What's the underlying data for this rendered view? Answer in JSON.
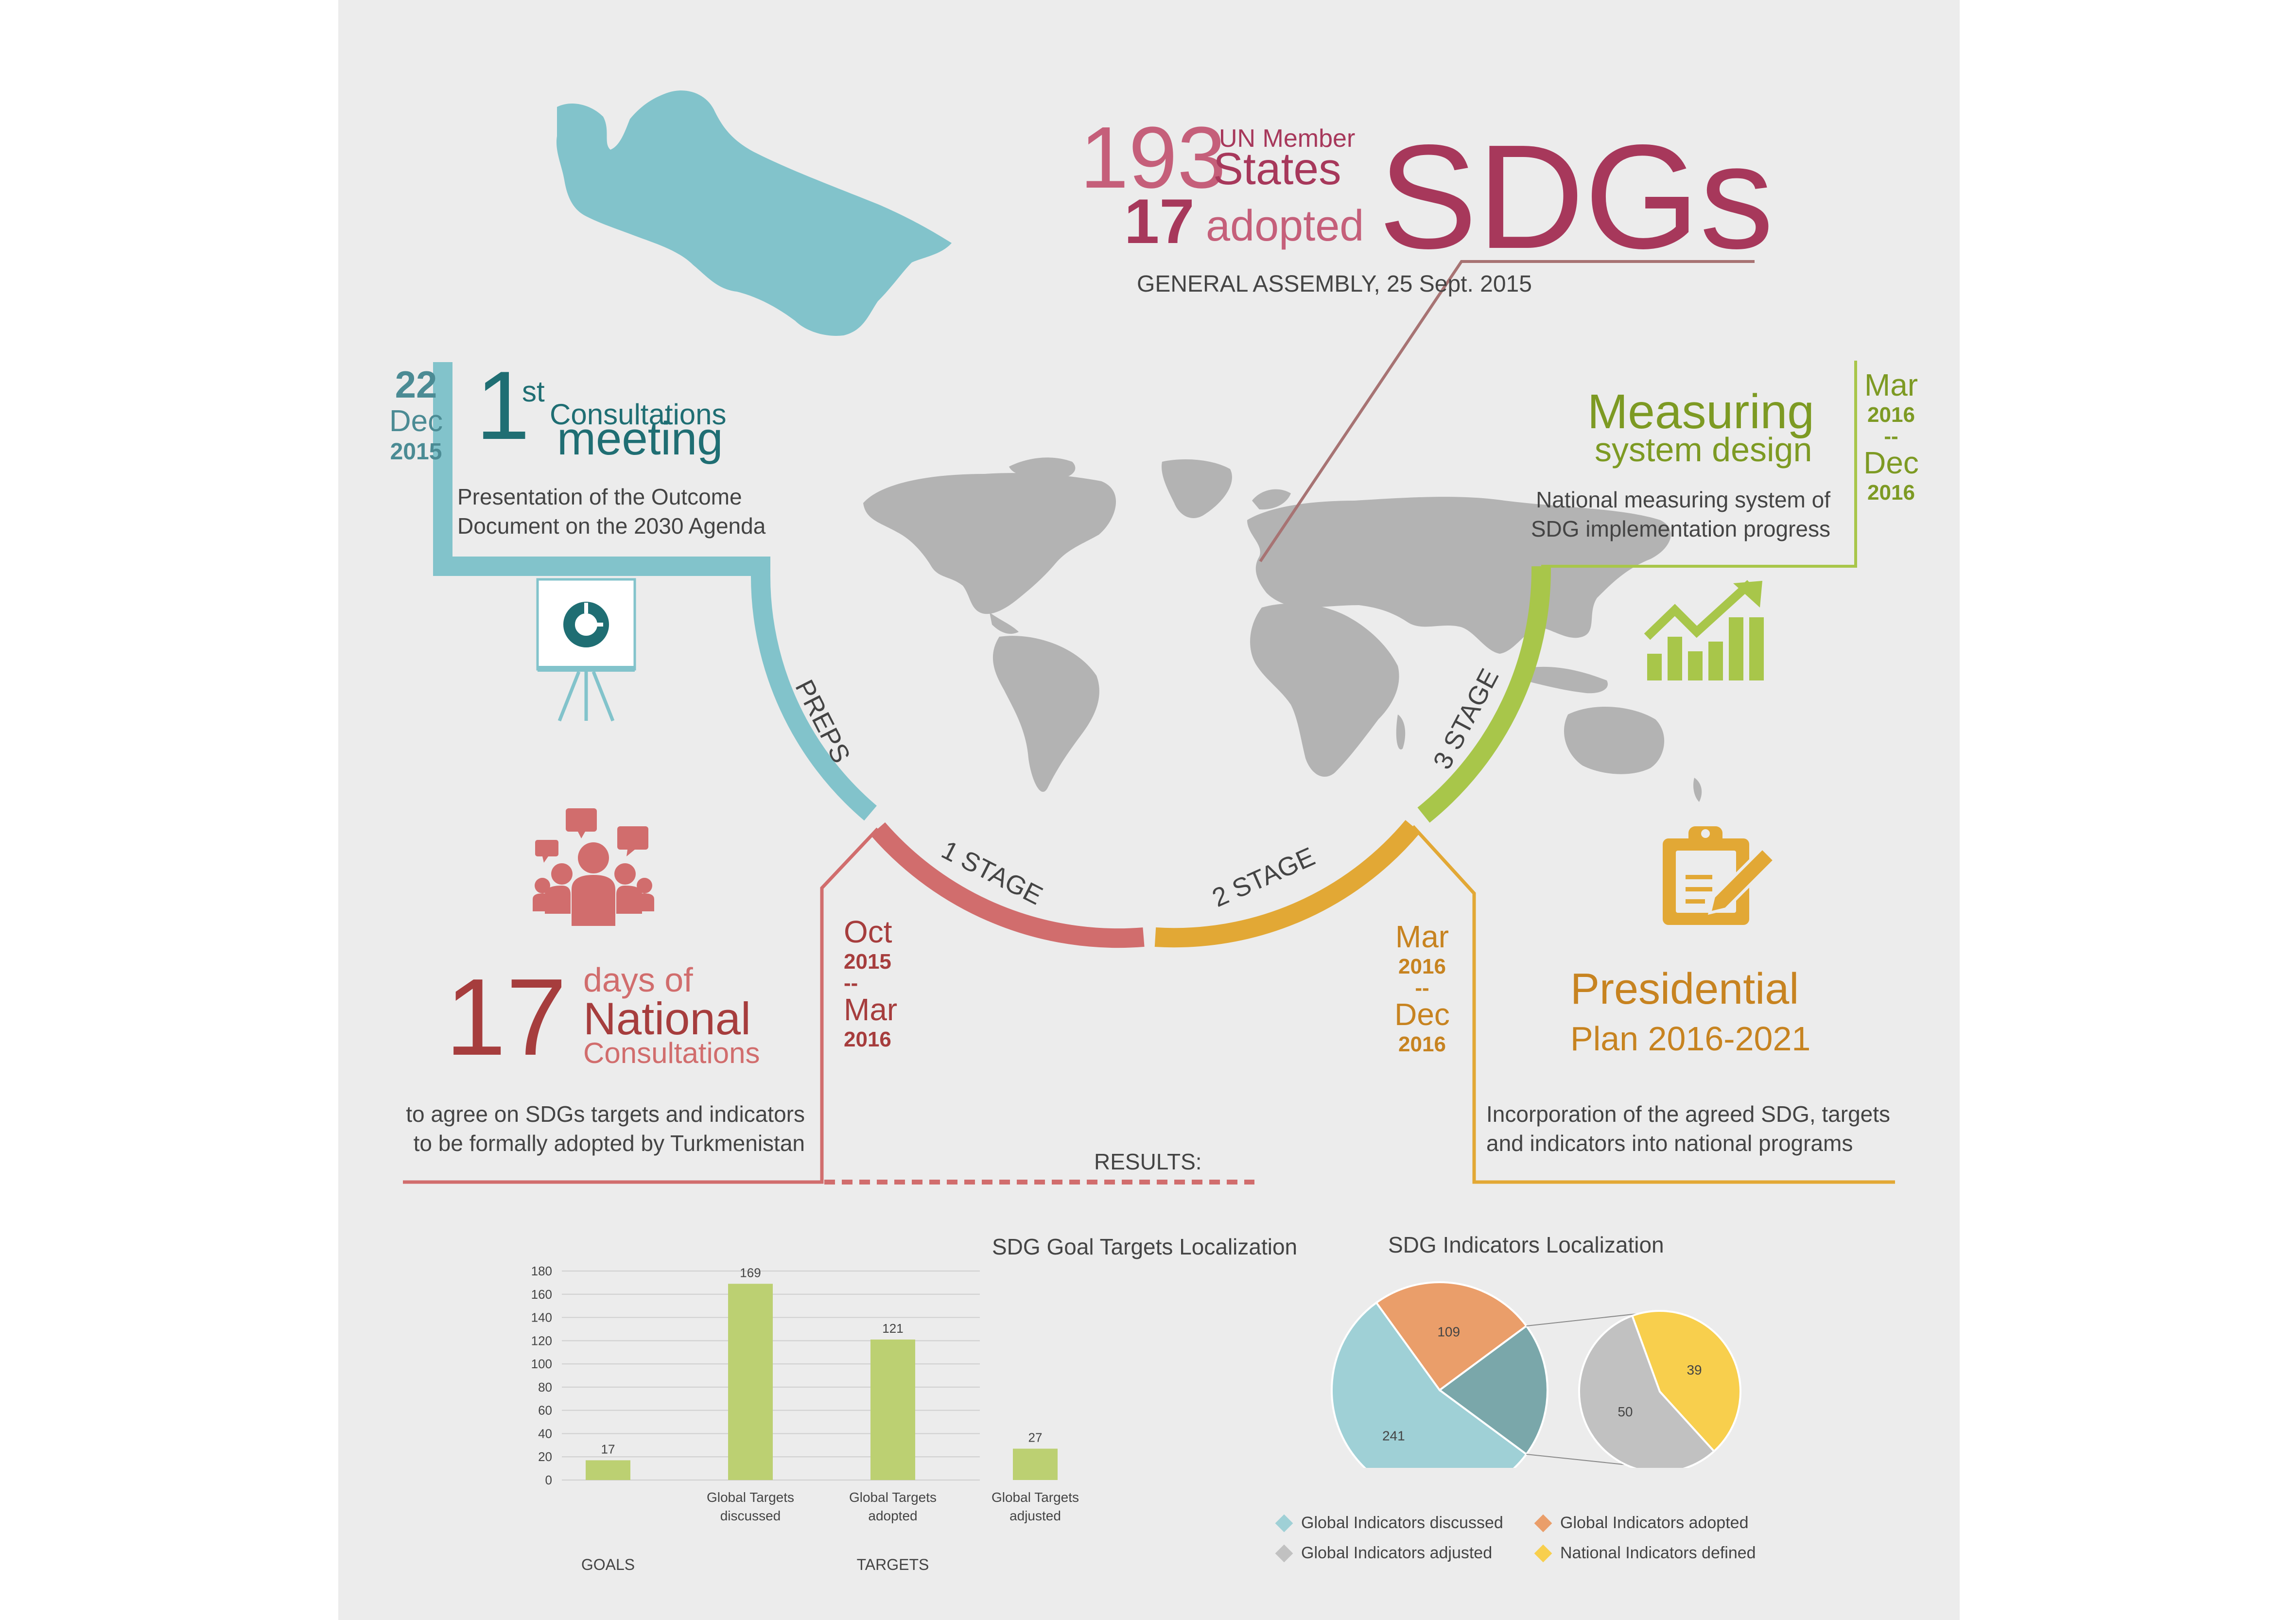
{
  "colors": {
    "background": "#ececec",
    "teal": "#82c3cb",
    "teal_dark": "#1f6e73",
    "red": "#d16d6d",
    "red_dark": "#a63d3d",
    "orange": "#e2a835",
    "orange_text": "#c78320",
    "green": "#a8c64a",
    "green_text": "#7d9a23",
    "maroon": "#a7385b",
    "pink": "#c55f7a",
    "map_gray": "#b3b3b3"
  },
  "header": {
    "num193": "193",
    "un_member": "UN Member",
    "states": "States",
    "num17": "17",
    "adopted": "adopted",
    "sdgs": "SDGs",
    "general_assembly": "GENERAL  ASSEMBLY, 25 Sept. 2015"
  },
  "first_meeting": {
    "date_day": "22",
    "date_month": "Dec",
    "date_year": "2015",
    "num": "1",
    "sup": "st",
    "consultations": "Consultations",
    "meeting": "meeting",
    "desc_line1": "Presentation of the Outcome",
    "desc_line2": "Document on the 2030 Agenda"
  },
  "measuring": {
    "title1": "Measuring",
    "title2": "system design",
    "desc_line1": "National measuring system of",
    "desc_line2": "SDG implementation progress",
    "date_from_month": "Mar",
    "date_from_year": "2016",
    "date_sep": "--",
    "date_to_month": "Dec",
    "date_to_year": "2016"
  },
  "arc_labels": {
    "preps": "PREPS",
    "stage1": "1 STAGE",
    "stage2": "2 STAGE",
    "stage3": "3 STAGE"
  },
  "national": {
    "num": "17",
    "line1": "days of",
    "line2": "National",
    "line3": "Consultations",
    "desc_line1": "to agree on SDGs targets and indicators",
    "desc_line2": "to be formally adopted by Turkmenistan"
  },
  "stage1_dates": {
    "from_month": "Oct",
    "from_year": "2015",
    "sep": "--",
    "to_month": "Mar",
    "to_year": "2016"
  },
  "stage2_dates": {
    "from_month": "Mar",
    "from_year": "2016",
    "sep": "--",
    "to_month": "Dec",
    "to_year": "2016"
  },
  "presidential": {
    "title1": "Presidential",
    "title2": "Plan 2016-2021",
    "desc_line1": "Incorporation of the agreed SDG, targets",
    "desc_line2": "and indicators into national programs"
  },
  "results_label": "RESULTS:",
  "chart_data": [
    {
      "type": "bar",
      "title": "SDG Goal Targets Localization",
      "categories": [
        "",
        "Global Targets discussed",
        "Global Targets adopted",
        "Global Targets adjusted"
      ],
      "category_lines": [
        [
          "",
          ""
        ],
        [
          "Global Targets",
          "discussed"
        ],
        [
          "Global Targets",
          "adopted"
        ],
        [
          "Global Targets",
          "adjusted"
        ]
      ],
      "values": [
        17,
        169,
        121,
        27
      ],
      "group_labels": [
        "GOALS",
        "TARGETS"
      ],
      "yticks": [
        "180",
        "160",
        "140",
        "120",
        "100",
        "80",
        "60",
        "40",
        "20",
        "0"
      ],
      "ylim": [
        0,
        180
      ],
      "grid": true,
      "color": "#bcd072"
    },
    {
      "type": "pie",
      "title": "SDG Indicators Localization",
      "main_pie": [
        {
          "label": "Global Indicators discussed",
          "value": 241,
          "color": "#9fd0d6"
        },
        {
          "label": "Global Indicators adopted",
          "value": 109,
          "color": "#ea9e6a"
        },
        {
          "label": "",
          "value": 89,
          "color": "#7aa7aa"
        }
      ],
      "sub_pie": [
        {
          "label": "Global Indicators adjusted",
          "value": 50,
          "color": "#c1c1c1"
        },
        {
          "label": "National Indicators defined",
          "value": 39,
          "color": "#f8cf4d"
        }
      ],
      "legend": [
        {
          "label": "Global Indicators discussed",
          "color": "#9fd0d6"
        },
        {
          "label": "Global Indicators adopted",
          "color": "#ea9e6a"
        },
        {
          "label": "Global Indicators adjusted",
          "color": "#c1c1c1"
        },
        {
          "label": "National Indicators defined",
          "color": "#f8cf4d"
        }
      ],
      "legend_position": "bottom"
    }
  ]
}
